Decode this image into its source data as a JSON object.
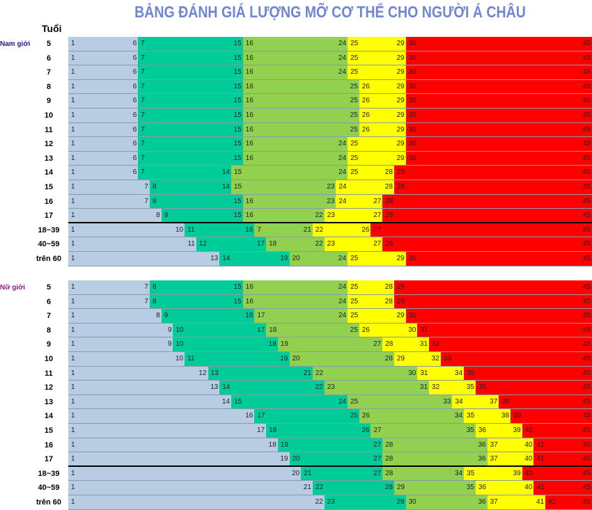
{
  "chart_data": {
    "type": "table",
    "title": "BẢNG ĐÁNH GIÁ LƯỢNG MỠ CƠ THỂ CHO NGƯỜI Á CHÂU",
    "column_header": "Tuổi",
    "scale_max": 45,
    "colors": [
      "#b8cce4",
      "#00cc99",
      "#92d050",
      "#ffff00",
      "#ff0000"
    ],
    "groups": [
      {
        "label": "Nam giới",
        "label_color": "#1a1a8c",
        "rows": [
          {
            "age": "5",
            "segments": [
              [
                1,
                6
              ],
              [
                7,
                15
              ],
              [
                16,
                24
              ],
              [
                25,
                29
              ],
              [
                30,
                45
              ]
            ]
          },
          {
            "age": "6",
            "segments": [
              [
                1,
                6
              ],
              [
                7,
                15
              ],
              [
                16,
                24
              ],
              [
                25,
                29
              ],
              [
                30,
                45
              ]
            ]
          },
          {
            "age": "7",
            "segments": [
              [
                1,
                6
              ],
              [
                7,
                15
              ],
              [
                16,
                24
              ],
              [
                25,
                29
              ],
              [
                30,
                45
              ]
            ]
          },
          {
            "age": "8",
            "segments": [
              [
                1,
                6
              ],
              [
                7,
                15
              ],
              [
                16,
                25
              ],
              [
                26,
                29
              ],
              [
                30,
                45
              ]
            ]
          },
          {
            "age": "9",
            "segments": [
              [
                1,
                6
              ],
              [
                7,
                15
              ],
              [
                16,
                25
              ],
              [
                26,
                29
              ],
              [
                30,
                45
              ]
            ]
          },
          {
            "age": "10",
            "segments": [
              [
                1,
                6
              ],
              [
                7,
                15
              ],
              [
                16,
                25
              ],
              [
                26,
                29
              ],
              [
                30,
                45
              ]
            ]
          },
          {
            "age": "11",
            "segments": [
              [
                1,
                6
              ],
              [
                7,
                15
              ],
              [
                16,
                25
              ],
              [
                26,
                29
              ],
              [
                30,
                45
              ]
            ]
          },
          {
            "age": "12",
            "segments": [
              [
                1,
                6
              ],
              [
                7,
                15
              ],
              [
                16,
                24
              ],
              [
                25,
                29
              ],
              [
                30,
                45
              ]
            ]
          },
          {
            "age": "13",
            "segments": [
              [
                1,
                6
              ],
              [
                7,
                15
              ],
              [
                16,
                24
              ],
              [
                25,
                29
              ],
              [
                30,
                45
              ]
            ]
          },
          {
            "age": "14",
            "segments": [
              [
                1,
                6
              ],
              [
                7,
                14
              ],
              [
                15,
                24
              ],
              [
                25,
                28
              ],
              [
                29,
                45
              ]
            ]
          },
          {
            "age": "15",
            "segments": [
              [
                1,
                7
              ],
              [
                8,
                14
              ],
              [
                15,
                23
              ],
              [
                24,
                28
              ],
              [
                29,
                45
              ]
            ]
          },
          {
            "age": "16",
            "segments": [
              [
                1,
                7
              ],
              [
                8,
                15
              ],
              [
                16,
                23
              ],
              [
                24,
                27
              ],
              [
                28,
                45
              ]
            ]
          },
          {
            "age": "17",
            "segments": [
              [
                1,
                8
              ],
              [
                9,
                15
              ],
              [
                16,
                22
              ],
              [
                23,
                27
              ],
              [
                28,
                45
              ]
            ]
          },
          {
            "age": "18~39",
            "segments": [
              [
                1,
                10
              ],
              [
                11,
                16
              ],
              [
                7,
                21
              ],
              [
                22,
                26
              ],
              [
                27,
                45
              ]
            ]
          },
          {
            "age": "40~59",
            "segments": [
              [
                1,
                11
              ],
              [
                12,
                17
              ],
              [
                18,
                22
              ],
              [
                23,
                27
              ],
              [
                28,
                45
              ]
            ]
          },
          {
            "age": "trên 60",
            "segments": [
              [
                1,
                13
              ],
              [
                14,
                19
              ],
              [
                20,
                24
              ],
              [
                25,
                29
              ],
              [
                30,
                45
              ]
            ]
          }
        ]
      },
      {
        "label": "Nữ giới",
        "label_color": "#8c1a8c",
        "rows": [
          {
            "age": "5",
            "segments": [
              [
                1,
                7
              ],
              [
                8,
                15
              ],
              [
                16,
                24
              ],
              [
                25,
                28
              ],
              [
                29,
                45
              ]
            ]
          },
          {
            "age": "6",
            "segments": [
              [
                1,
                7
              ],
              [
                8,
                15
              ],
              [
                16,
                24
              ],
              [
                25,
                28
              ],
              [
                29,
                45
              ]
            ]
          },
          {
            "age": "7",
            "segments": [
              [
                1,
                8
              ],
              [
                9,
                16
              ],
              [
                17,
                24
              ],
              [
                25,
                29
              ],
              [
                30,
                45
              ]
            ]
          },
          {
            "age": "8",
            "segments": [
              [
                1,
                9
              ],
              [
                10,
                17
              ],
              [
                18,
                25
              ],
              [
                26,
                30
              ],
              [
                31,
                45
              ]
            ]
          },
          {
            "age": "9",
            "segments": [
              [
                1,
                9
              ],
              [
                10,
                18
              ],
              [
                19,
                27
              ],
              [
                28,
                31
              ],
              [
                32,
                45
              ]
            ]
          },
          {
            "age": "10",
            "segments": [
              [
                1,
                10
              ],
              [
                11,
                19
              ],
              [
                20,
                28
              ],
              [
                29,
                32
              ],
              [
                33,
                45
              ]
            ]
          },
          {
            "age": "11",
            "segments": [
              [
                1,
                12
              ],
              [
                13,
                21
              ],
              [
                22,
                30
              ],
              [
                31,
                34
              ],
              [
                35,
                45
              ]
            ]
          },
          {
            "age": "12",
            "segments": [
              [
                1,
                13
              ],
              [
                14,
                22
              ],
              [
                23,
                31
              ],
              [
                32,
                35
              ],
              [
                36,
                45
              ]
            ]
          },
          {
            "age": "13",
            "segments": [
              [
                1,
                14
              ],
              [
                15,
                24
              ],
              [
                25,
                33
              ],
              [
                34,
                37
              ],
              [
                38,
                45
              ]
            ]
          },
          {
            "age": "14",
            "segments": [
              [
                1,
                16
              ],
              [
                17,
                25
              ],
              [
                26,
                34
              ],
              [
                35,
                38
              ],
              [
                39,
                45
              ]
            ]
          },
          {
            "age": "15",
            "segments": [
              [
                1,
                17
              ],
              [
                18,
                26
              ],
              [
                27,
                35
              ],
              [
                36,
                39
              ],
              [
                40,
                45
              ]
            ]
          },
          {
            "age": "16",
            "segments": [
              [
                1,
                18
              ],
              [
                19,
                27
              ],
              [
                28,
                36
              ],
              [
                37,
                40
              ],
              [
                41,
                45
              ]
            ]
          },
          {
            "age": "17",
            "segments": [
              [
                1,
                19
              ],
              [
                20,
                27
              ],
              [
                28,
                36
              ],
              [
                37,
                40
              ],
              [
                41,
                45
              ]
            ]
          },
          {
            "age": "18~39",
            "segments": [
              [
                1,
                20
              ],
              [
                21,
                27
              ],
              [
                28,
                34
              ],
              [
                35,
                39
              ],
              [
                40,
                45
              ]
            ]
          },
          {
            "age": "40~59",
            "segments": [
              [
                1,
                21
              ],
              [
                22,
                28
              ],
              [
                29,
                35
              ],
              [
                36,
                40
              ],
              [
                41,
                45
              ]
            ]
          },
          {
            "age": "trên 60",
            "segments": [
              [
                1,
                22
              ],
              [
                23,
                29
              ],
              [
                30,
                36
              ],
              [
                37,
                41
              ],
              [
                42,
                45
              ]
            ]
          }
        ]
      }
    ]
  }
}
